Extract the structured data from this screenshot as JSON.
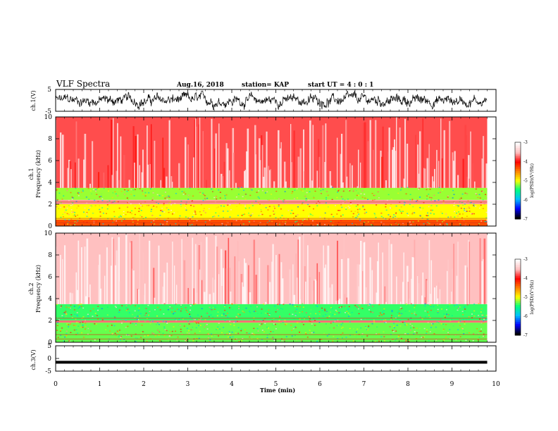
{
  "header": {
    "title": "VLF Spectra",
    "date": "Aug.16, 2018",
    "station": "station= KAP",
    "start_ut": "start  UT  =   4 : 0  : 1"
  },
  "chart_data": [
    {
      "type": "line",
      "panel": "ch.1 waveform",
      "ylabel": "ch.1(V)",
      "ylim": [
        -5,
        5
      ],
      "yticks": [
        "5",
        "-5"
      ],
      "xlim": [
        0,
        10
      ],
      "series": [
        {
          "values_desc": "noisy signal between about -4 and 4 V, 0 to 9.8 min"
        }
      ]
    },
    {
      "type": "heatmap",
      "panel": "ch.1 spectrogram",
      "ylabel": "ch.1\nFrequency (kHz)",
      "ylim": [
        0,
        10
      ],
      "yticks": [
        "0",
        "2",
        "4",
        "6",
        "8",
        "10"
      ],
      "xlim": [
        0,
        9.8
      ],
      "bands": [
        {
          "from_khz": 0,
          "to_khz": 0.6,
          "level": -4.3
        },
        {
          "from_khz": 0.6,
          "to_khz": 2.0,
          "level": -5.0
        },
        {
          "from_khz": 2.0,
          "to_khz": 2.4,
          "level": -3.6
        },
        {
          "from_khz": 2.4,
          "to_khz": 3.5,
          "level": -5.2
        },
        {
          "from_khz": 3.5,
          "to_khz": 10,
          "level": -3.8
        }
      ],
      "colorbar": {
        "label": "log(PSD)(V²/Hz)",
        "range": [
          -7,
          -3
        ],
        "ticks": [
          "-3",
          "-4",
          "-5",
          "-6",
          "-7"
        ]
      }
    },
    {
      "type": "heatmap",
      "panel": "ch.2 spectrogram",
      "ylabel": "ch.2\nFrequency (kHz)",
      "ylim": [
        0,
        10
      ],
      "yticks": [
        "0",
        "2",
        "4",
        "6",
        "8",
        "10"
      ],
      "xlim": [
        0,
        9.8
      ],
      "bands": [
        {
          "from_khz": 0,
          "to_khz": 1.8,
          "level": -5.3
        },
        {
          "from_khz": 1.8,
          "to_khz": 2.0,
          "level": -3.7
        },
        {
          "from_khz": 2.0,
          "to_khz": 3.5,
          "level": -5.4
        },
        {
          "from_khz": 3.5,
          "to_khz": 10,
          "level": -3.5
        }
      ],
      "colorbar": {
        "label": "log(PSD)(V²/Hz)",
        "range": [
          -7,
          -3
        ],
        "ticks": [
          "-3",
          "-4",
          "-5",
          "-6",
          "-7"
        ]
      }
    },
    {
      "type": "line",
      "panel": "ch.3 waveform",
      "ylabel": "ch.3(V)",
      "ylim": [
        -5,
        5
      ],
      "yticks": [
        "5",
        "0",
        "-5"
      ],
      "xlim": [
        0,
        10
      ],
      "series": [
        {
          "constant": -1.5,
          "x_end": 9.8
        }
      ]
    }
  ],
  "xaxis": {
    "label": "Time  (min)",
    "ticks": [
      "0",
      "1",
      "2",
      "3",
      "4",
      "5",
      "6",
      "7",
      "8",
      "9",
      "10"
    ]
  },
  "colors": {
    "cb_stops": [
      "#000000",
      "#0000ff",
      "#00c0ff",
      "#00ff80",
      "#ffff00",
      "#ff8000",
      "#ff0000",
      "#ffc0c0",
      "#ffffff"
    ]
  }
}
